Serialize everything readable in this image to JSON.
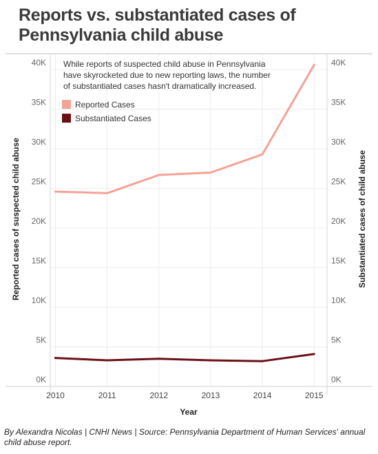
{
  "title": "Reports vs. substantiated cases of Pennsylvania child abuse",
  "footer": "By Alexandra Nicolas | CNHI News | Source: Pennsylvania Department of Human Services' annual child abuse report.",
  "chart_data": {
    "type": "line",
    "title": "Reports vs. substantiated cases of Pennsylvania child abuse",
    "annotation": "While reports of suspected child abuse in Pennsylvania have skyrocketed due to new reporting laws, the number of substantiated cases hasn't dramatically increased.",
    "annotation_lines": [
      "While reports of suspected child abuse in Pennsylvania",
      "have skyrocketed due to new reporting laws, the number",
      "of substantiated cases hasn't dramatically increased."
    ],
    "xlabel": "Year",
    "ylabel_left": "Reported cases of suspected child abuse",
    "ylabel_right": "Substantiated cases of child abuse",
    "x": [
      2010,
      2011,
      2012,
      2013,
      2014,
      2015
    ],
    "xlim": [
      2009.9,
      2015.25
    ],
    "ylim": [
      0,
      42000
    ],
    "yticks": [
      0,
      5000,
      10000,
      15000,
      20000,
      25000,
      30000,
      35000,
      40000
    ],
    "ytick_labels": [
      "0K",
      "5K",
      "10K",
      "15K",
      "20K",
      "25K",
      "30K",
      "35K",
      "40K"
    ],
    "grid": true,
    "legend_position": "top-left",
    "series": [
      {
        "name": "Reported Cases",
        "color": "#f4a295",
        "axis": "left",
        "values": [
          24600,
          24400,
          26700,
          27000,
          29300,
          40600
        ]
      },
      {
        "name": "Substantiated Cases",
        "color": "#6b0f14",
        "axis": "right",
        "values": [
          3600,
          3300,
          3500,
          3300,
          3200,
          4100
        ]
      }
    ]
  }
}
